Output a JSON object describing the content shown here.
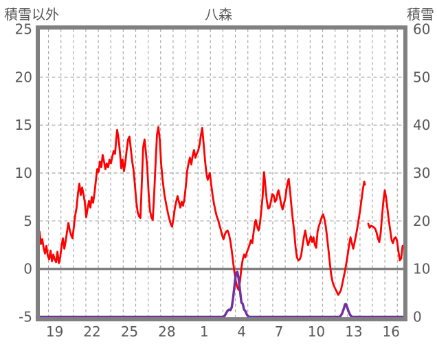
{
  "header": {
    "left_axis_title": "積雪以外",
    "chart_title": "八森",
    "right_axis_title": "積雪"
  },
  "chart_data": {
    "type": "line",
    "title": "八森",
    "station": "八森",
    "legend": "none",
    "x_axis": {
      "tick_labels": [
        "19",
        "22",
        "25",
        "28",
        "1",
        "4",
        "7",
        "10",
        "13",
        "16"
      ],
      "tick_positions": [
        19.5,
        22.5,
        25.5,
        28.5,
        31.5,
        34.5,
        37.5,
        40.5,
        43.5,
        46.5
      ],
      "xlim": [
        18.28,
        47.48
      ],
      "gridline_interval": 1
    },
    "left_axis": {
      "title": "積雪以外",
      "ticks": [
        25,
        20,
        15,
        10,
        5,
        0,
        -5
      ],
      "ylim": [
        -5,
        25
      ],
      "solid_line_at": 0,
      "dashed_gridlines_at": [
        20,
        15,
        10,
        5
      ]
    },
    "right_axis": {
      "title": "積雪",
      "ticks": [
        60,
        50,
        40,
        30,
        20,
        10,
        0
      ],
      "ylim": [
        0,
        60
      ]
    },
    "colors": {
      "red_series": "#ff0000",
      "purple_series": "#7030a0",
      "frame": "#808080",
      "zero_line": "#808080",
      "grid": "#a6a6a6",
      "text": "#595959"
    },
    "series": [
      {
        "name": "積雪以外",
        "axis": "left",
        "color": "#ff0000",
        "points": [
          [
            18.06,
            4.5
          ],
          [
            18.17,
            3.4
          ],
          [
            18.28,
            3.9
          ],
          [
            18.39,
            2.6
          ],
          [
            18.5,
            3.1
          ],
          [
            18.61,
            2.2
          ],
          [
            18.72,
            1.6
          ],
          [
            18.83,
            2.4
          ],
          [
            18.94,
            1.4
          ],
          [
            19.06,
            1.0
          ],
          [
            19.17,
            1.9
          ],
          [
            19.28,
            0.8
          ],
          [
            19.39,
            1.5
          ],
          [
            19.5,
            1.0
          ],
          [
            19.61,
            0.7
          ],
          [
            19.72,
            1.8
          ],
          [
            19.83,
            0.6
          ],
          [
            19.94,
            1.2
          ],
          [
            20.05,
            2.4
          ],
          [
            20.16,
            3.2
          ],
          [
            20.27,
            2.1
          ],
          [
            20.38,
            2.9
          ],
          [
            20.49,
            3.9
          ],
          [
            20.6,
            4.8
          ],
          [
            20.71,
            4.0
          ],
          [
            20.82,
            3.5
          ],
          [
            20.93,
            3.2
          ],
          [
            21.04,
            4.4
          ],
          [
            21.15,
            5.6
          ],
          [
            21.26,
            6.4
          ],
          [
            21.37,
            7.9
          ],
          [
            21.48,
            8.9
          ],
          [
            21.59,
            7.7
          ],
          [
            21.7,
            8.5
          ],
          [
            21.81,
            7.8
          ],
          [
            21.92,
            6.9
          ],
          [
            22.03,
            5.4
          ],
          [
            22.14,
            6.3
          ],
          [
            22.25,
            7.1
          ],
          [
            22.36,
            6.4
          ],
          [
            22.47,
            7.5
          ],
          [
            22.58,
            6.9
          ],
          [
            22.69,
            7.9
          ],
          [
            22.8,
            9.2
          ],
          [
            22.91,
            10.4
          ],
          [
            23.02,
            10.1
          ],
          [
            23.13,
            11.2
          ],
          [
            23.24,
            10.6
          ],
          [
            23.35,
            11.9
          ],
          [
            23.46,
            11.2
          ],
          [
            23.57,
            10.4
          ],
          [
            23.68,
            11.0
          ],
          [
            23.79,
            10.6
          ],
          [
            23.9,
            11.4
          ],
          [
            24.01,
            11.0
          ],
          [
            24.12,
            11.7
          ],
          [
            24.23,
            12.3
          ],
          [
            24.34,
            12.0
          ],
          [
            24.45,
            13.7
          ],
          [
            24.51,
            14.5
          ],
          [
            24.62,
            13.6
          ],
          [
            24.73,
            12.2
          ],
          [
            24.84,
            10.5
          ],
          [
            24.95,
            11.4
          ],
          [
            25.06,
            10.2
          ],
          [
            25.17,
            11.1
          ],
          [
            25.28,
            12.4
          ],
          [
            25.39,
            13.5
          ],
          [
            25.5,
            13.8
          ],
          [
            25.61,
            12.5
          ],
          [
            25.72,
            11.2
          ],
          [
            25.83,
            10.3
          ],
          [
            25.94,
            8.7
          ],
          [
            26.05,
            7.0
          ],
          [
            26.16,
            5.9
          ],
          [
            26.27,
            5.5
          ],
          [
            26.38,
            5.3
          ],
          [
            26.49,
            9.0
          ],
          [
            26.6,
            12.7
          ],
          [
            26.71,
            13.5
          ],
          [
            26.82,
            12.1
          ],
          [
            26.93,
            10.5
          ],
          [
            27.04,
            7.9
          ],
          [
            27.15,
            6.1
          ],
          [
            27.26,
            5.4
          ],
          [
            27.37,
            5.1
          ],
          [
            27.48,
            7.7
          ],
          [
            27.6,
            11.1
          ],
          [
            27.71,
            14.0
          ],
          [
            27.82,
            14.8
          ],
          [
            27.93,
            13.5
          ],
          [
            28.04,
            11.0
          ],
          [
            28.15,
            9.4
          ],
          [
            28.31,
            7.7
          ],
          [
            28.48,
            6.5
          ],
          [
            28.64,
            5.5
          ],
          [
            28.81,
            4.7
          ],
          [
            28.92,
            4.4
          ],
          [
            29.03,
            5.2
          ],
          [
            29.14,
            6.3
          ],
          [
            29.25,
            7.0
          ],
          [
            29.36,
            7.6
          ],
          [
            29.47,
            7.0
          ],
          [
            29.58,
            6.4
          ],
          [
            29.69,
            7.0
          ],
          [
            29.8,
            6.6
          ],
          [
            29.91,
            7.3
          ],
          [
            30.02,
            8.6
          ],
          [
            30.13,
            10.2
          ],
          [
            30.24,
            11.0
          ],
          [
            30.35,
            11.6
          ],
          [
            30.46,
            10.9
          ],
          [
            30.57,
            11.8
          ],
          [
            30.68,
            12.4
          ],
          [
            30.79,
            11.6
          ],
          [
            30.9,
            12.0
          ],
          [
            31.01,
            12.3
          ],
          [
            31.12,
            12.9
          ],
          [
            31.23,
            13.9
          ],
          [
            31.34,
            14.7
          ],
          [
            31.45,
            13.1
          ],
          [
            31.56,
            11.4
          ],
          [
            31.67,
            10.0
          ],
          [
            31.78,
            9.3
          ],
          [
            31.95,
            10.0
          ],
          [
            32.06,
            8.8
          ],
          [
            32.17,
            7.7
          ],
          [
            32.28,
            6.8
          ],
          [
            32.39,
            6.1
          ],
          [
            32.5,
            5.5
          ],
          [
            32.61,
            5.1
          ],
          [
            32.72,
            4.6
          ],
          [
            32.83,
            4.1
          ],
          [
            32.94,
            3.5
          ],
          [
            33.05,
            3.1
          ],
          [
            33.16,
            3.6
          ],
          [
            33.27,
            3.9
          ],
          [
            33.38,
            4.0
          ],
          [
            33.49,
            3.6
          ],
          [
            33.6,
            2.9
          ],
          [
            33.71,
            1.9
          ],
          [
            33.82,
            0.7
          ],
          [
            33.93,
            -0.4
          ],
          [
            34.04,
            -1.3
          ],
          [
            34.15,
            -1.9
          ],
          [
            34.26,
            -2.2
          ],
          [
            34.37,
            -1.3
          ],
          [
            34.48,
            0.1
          ],
          [
            34.59,
            1.0
          ],
          [
            34.7,
            1.5
          ],
          [
            34.81,
            1.2
          ],
          [
            34.92,
            1.7
          ],
          [
            35.03,
            2.1
          ],
          [
            35.14,
            2.5
          ],
          [
            35.25,
            3.0
          ],
          [
            35.36,
            2.7
          ],
          [
            35.47,
            3.9
          ],
          [
            35.58,
            4.9
          ],
          [
            35.64,
            5.1
          ],
          [
            35.75,
            4.4
          ],
          [
            35.86,
            4.0
          ],
          [
            35.97,
            4.7
          ],
          [
            36.08,
            6.1
          ],
          [
            36.19,
            7.6
          ],
          [
            36.24,
            9.0
          ],
          [
            36.3,
            10.1
          ],
          [
            36.41,
            8.6
          ],
          [
            36.52,
            7.1
          ],
          [
            36.63,
            6.3
          ],
          [
            36.74,
            6.4
          ],
          [
            36.85,
            7.0
          ],
          [
            36.96,
            7.8
          ],
          [
            37.07,
            7.7
          ],
          [
            37.18,
            7.0
          ],
          [
            37.29,
            7.2
          ],
          [
            37.4,
            8.0
          ],
          [
            37.46,
            8.2
          ],
          [
            37.57,
            7.5
          ],
          [
            37.68,
            6.7
          ],
          [
            37.79,
            6.2
          ],
          [
            37.9,
            6.8
          ],
          [
            38.01,
            7.4
          ],
          [
            38.12,
            8.5
          ],
          [
            38.23,
            9.2
          ],
          [
            38.28,
            9.4
          ],
          [
            38.39,
            8.1
          ],
          [
            38.5,
            6.5
          ],
          [
            38.61,
            5.1
          ],
          [
            38.72,
            3.9
          ],
          [
            38.83,
            2.3
          ],
          [
            38.94,
            1.2
          ],
          [
            39.06,
            0.9
          ],
          [
            39.17,
            1.0
          ],
          [
            39.28,
            1.4
          ],
          [
            39.39,
            2.4
          ],
          [
            39.5,
            3.3
          ],
          [
            39.61,
            4.0
          ],
          [
            39.72,
            3.1
          ],
          [
            39.83,
            2.5
          ],
          [
            39.94,
            2.9
          ],
          [
            40.05,
            3.4
          ],
          [
            40.16,
            2.8
          ],
          [
            40.27,
            3.3
          ],
          [
            40.38,
            2.5
          ],
          [
            40.49,
            2.2
          ],
          [
            40.6,
            3.9
          ],
          [
            40.71,
            4.5
          ],
          [
            40.82,
            4.9
          ],
          [
            40.93,
            5.4
          ],
          [
            41.04,
            5.7
          ],
          [
            41.15,
            5.2
          ],
          [
            41.26,
            4.4
          ],
          [
            41.37,
            3.2
          ],
          [
            41.48,
            1.9
          ],
          [
            41.59,
            0.5
          ],
          [
            41.7,
            -0.7
          ],
          [
            41.81,
            -1.4
          ],
          [
            41.92,
            -1.8
          ],
          [
            42.03,
            -2.1
          ],
          [
            42.14,
            -2.4
          ],
          [
            42.25,
            -2.7
          ],
          [
            42.36,
            -2.5
          ],
          [
            42.47,
            -2.2
          ],
          [
            42.58,
            -1.6
          ],
          [
            42.69,
            -0.9
          ],
          [
            42.8,
            -0.2
          ],
          [
            42.91,
            0.6
          ],
          [
            43.02,
            1.5
          ],
          [
            43.13,
            2.5
          ],
          [
            43.24,
            3.3
          ],
          [
            43.35,
            2.7
          ],
          [
            43.46,
            2.1
          ],
          [
            43.57,
            2.8
          ],
          [
            43.68,
            3.5
          ],
          [
            43.79,
            4.3
          ],
          [
            43.9,
            5.2
          ],
          [
            44.01,
            6.1
          ],
          [
            44.12,
            7.2
          ],
          [
            44.23,
            8.3
          ],
          [
            44.34,
            9.1
          ],
          [
            44.4,
            8.8
          ],
          [
            44.5,
            null
          ],
          [
            44.67,
            4.7
          ],
          [
            44.78,
            4.3
          ],
          [
            44.89,
            4.5
          ],
          [
            45.06,
            4.4
          ],
          [
            45.22,
            4.2
          ],
          [
            45.33,
            3.8
          ],
          [
            45.44,
            3.2
          ],
          [
            45.55,
            2.8
          ],
          [
            45.66,
            3.7
          ],
          [
            45.77,
            5.5
          ],
          [
            45.88,
            7.1
          ],
          [
            45.99,
            8.2
          ],
          [
            46.1,
            7.4
          ],
          [
            46.21,
            6.2
          ],
          [
            46.32,
            5.0
          ],
          [
            46.43,
            4.0
          ],
          [
            46.54,
            3.0
          ],
          [
            46.65,
            2.7
          ],
          [
            46.76,
            3.2
          ],
          [
            46.87,
            3.3
          ],
          [
            46.98,
            2.9
          ],
          [
            47.09,
            1.8
          ],
          [
            47.2,
            0.9
          ],
          [
            47.31,
            1.1
          ],
          [
            47.42,
            2.4
          ]
        ]
      },
      {
        "name": "積雪",
        "axis": "right",
        "color": "#7030a0",
        "points": [
          [
            18.06,
            0
          ],
          [
            33.05,
            0
          ],
          [
            33.16,
            0.3
          ],
          [
            33.27,
            0.8
          ],
          [
            33.38,
            1.3
          ],
          [
            33.49,
            1.5
          ],
          [
            33.6,
            1.4
          ],
          [
            33.71,
            2.0
          ],
          [
            33.82,
            4.0
          ],
          [
            33.93,
            6.5
          ],
          [
            34.04,
            9.0
          ],
          [
            34.15,
            9.4
          ],
          [
            34.26,
            8.0
          ],
          [
            34.37,
            5.5
          ],
          [
            34.48,
            3.0
          ],
          [
            34.59,
            2.7
          ],
          [
            34.7,
            1.5
          ],
          [
            34.81,
            1.2
          ],
          [
            34.92,
            0.5
          ],
          [
            35.03,
            0.1
          ],
          [
            35.14,
            0
          ],
          [
            42.36,
            0
          ],
          [
            42.47,
            0.3
          ],
          [
            42.58,
            0.8
          ],
          [
            42.69,
            1.6
          ],
          [
            42.8,
            2.6
          ],
          [
            42.86,
            2.7
          ],
          [
            42.97,
            2.0
          ],
          [
            43.08,
            1.2
          ],
          [
            43.19,
            0.5
          ],
          [
            43.3,
            0.1
          ],
          [
            43.41,
            0
          ],
          [
            47.42,
            0
          ]
        ]
      }
    ]
  }
}
